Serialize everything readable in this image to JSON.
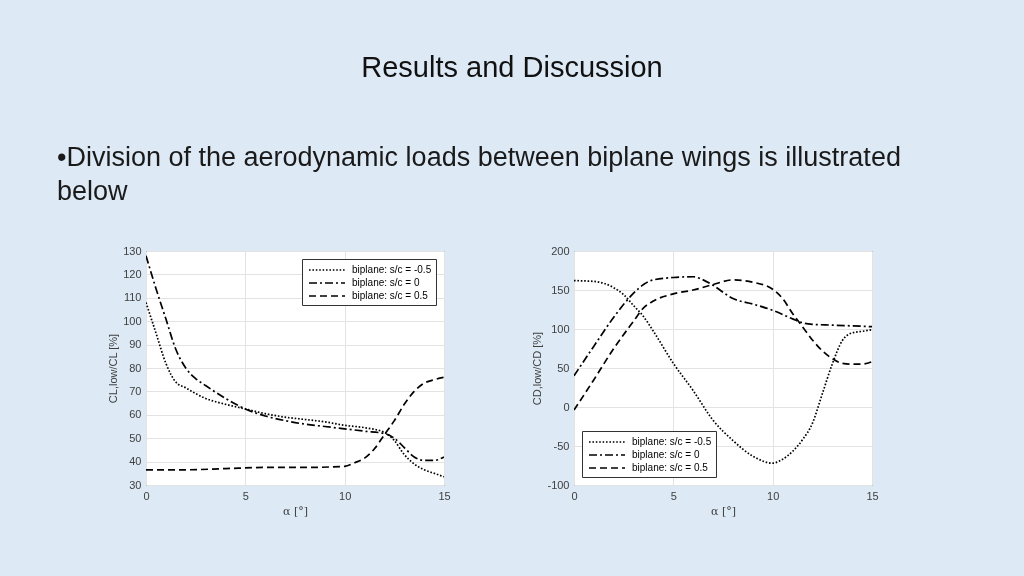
{
  "chart_data": [
    {
      "type": "line",
      "title": "Results and Discussion",
      "subtitle": "•Division of the aerodynamic loads between biplane wings is illustrated below",
      "xlabel": "α [°]",
      "ylabel": "CL,low/CL [%]",
      "xlim": [
        0,
        15
      ],
      "xticks": [
        0,
        5,
        10,
        15
      ],
      "ylim": [
        30,
        130
      ],
      "yticks": [
        30,
        40,
        50,
        60,
        70,
        80,
        90,
        100,
        110,
        120,
        130
      ],
      "grid": true,
      "legend": "top right",
      "series": [
        {
          "name": "biplane: s/c = -0.5",
          "color": "#000000",
          "line_style": "dotted",
          "x": [
            0,
            0.5,
            1,
            1.5,
            2,
            3,
            4,
            5,
            6,
            7,
            8,
            9,
            10,
            11,
            12,
            12.5,
            13,
            13.5,
            14,
            14.5,
            15
          ],
          "values": [
            108,
            95,
            82,
            74,
            71.5,
            67,
            64.5,
            62.5,
            60.5,
            59,
            58,
            57,
            55.5,
            54.5,
            52.5,
            49,
            43,
            39,
            36.5,
            35,
            33.5
          ]
        },
        {
          "name": "biplane: s/c = 0",
          "color": "#000000",
          "line_style": "dashdot",
          "x": [
            0,
            0.5,
            1,
            1.5,
            2,
            2.5,
            3,
            4,
            5,
            6,
            7,
            8,
            9,
            10,
            11,
            12,
            12.5,
            13,
            13.5,
            14,
            14.5,
            15
          ],
          "values": [
            128,
            114,
            101,
            88,
            80,
            75.5,
            72.5,
            67,
            62.5,
            59.5,
            57.5,
            56,
            55,
            54,
            53,
            52,
            50,
            46,
            42,
            40.5,
            40.5,
            42
          ]
        },
        {
          "name": "biplane: s/c = 0.5",
          "color": "#000000",
          "line_style": "dashed",
          "x": [
            0,
            2,
            4,
            6,
            8,
            10,
            10.5,
            11,
            11.5,
            12,
            12.5,
            13,
            13.5,
            14,
            14.5,
            15
          ],
          "values": [
            36.5,
            36.5,
            37,
            37.5,
            37.5,
            38,
            39.5,
            41.5,
            45.5,
            51.5,
            57.5,
            64.5,
            70,
            73.5,
            75,
            76
          ]
        }
      ]
    },
    {
      "type": "line",
      "xlabel": "α [°]",
      "ylabel": "CD,low/CD [%]",
      "xlim": [
        0,
        15
      ],
      "xticks": [
        0,
        5,
        10,
        15
      ],
      "ylim": [
        -100,
        200
      ],
      "yticks": [
        -100,
        -50,
        0,
        50,
        100,
        150,
        200
      ],
      "grid": true,
      "legend": "bottom left",
      "series": [
        {
          "name": "biplane: s/c = -0.5",
          "color": "#000000",
          "line_style": "dotted",
          "x": [
            0,
            1,
            2,
            2.5,
            3,
            3.5,
            4,
            5,
            6,
            7,
            8,
            9,
            10,
            10.5,
            11,
            11.5,
            12,
            12.5,
            13,
            13.5,
            14,
            14.5,
            15
          ],
          "values": [
            162,
            161,
            153,
            144,
            130,
            116,
            97,
            56,
            21,
            -17,
            -43,
            -63,
            -72,
            -67,
            -57,
            -42,
            -21,
            17,
            55,
            85,
            95,
            97,
            99
          ]
        },
        {
          "name": "biplane: s/c = 0",
          "color": "#000000",
          "line_style": "dashdot",
          "x": [
            0,
            1,
            2,
            3,
            3.5,
            4,
            5,
            6,
            6.5,
            7,
            8,
            9,
            10,
            11,
            11.5,
            12,
            13,
            14,
            15
          ],
          "values": [
            40,
            78,
            115,
            146,
            157,
            163,
            166,
            167,
            163,
            156,
            139,
            132,
            124,
            113,
            108,
            106,
            105,
            104,
            103
          ]
        },
        {
          "name": "biplane: s/c = 0.5",
          "color": "#000000",
          "line_style": "dashed",
          "x": [
            0,
            1,
            2,
            3,
            3.5,
            4,
            5,
            6,
            7,
            8,
            9,
            10,
            10.5,
            11,
            11.5,
            12,
            12.5,
            13,
            13.5,
            14,
            14.5,
            15
          ],
          "values": [
            -4,
            35,
            75,
            110,
            127,
            136,
            145,
            150,
            157,
            163,
            160,
            151,
            139,
            120,
            103,
            86,
            72,
            62,
            56,
            55,
            55,
            58
          ]
        }
      ]
    }
  ]
}
